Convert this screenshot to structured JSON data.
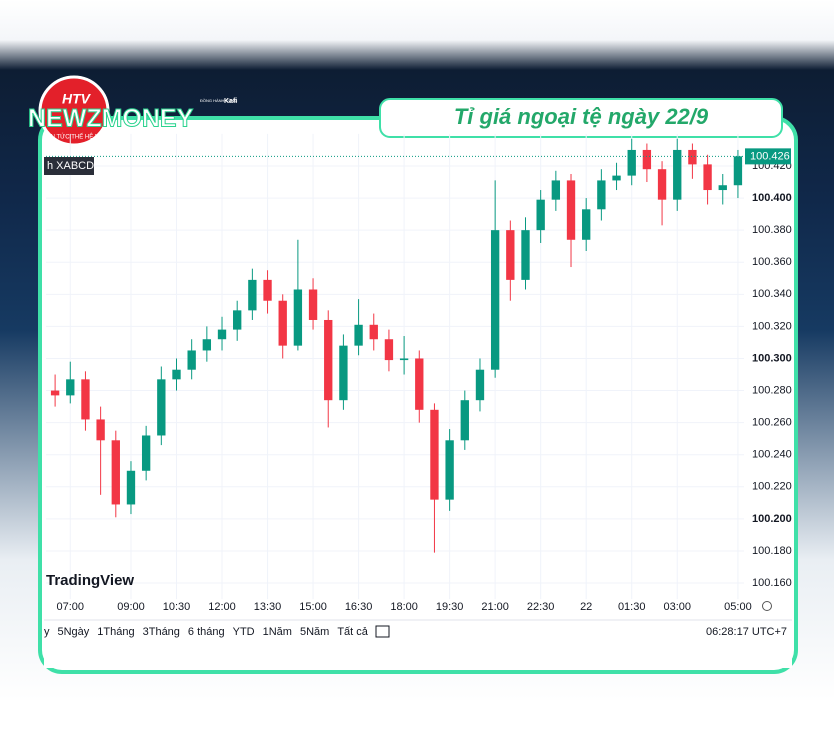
{
  "logo": {
    "brand": "NEWZMONEY",
    "badge": "HTV",
    "tagline": "TIN TỨC THẾ HỆ MỚI",
    "partner": "ĐỒNG HÀNH CÙNG",
    "partner_name": "Kafi"
  },
  "banner": "Tỉ giá ngoại tệ ngày 22/9",
  "toolbar": {
    "ranges": [
      "y",
      "5Ngày",
      "1Tháng",
      "3Tháng",
      "6 tháng",
      "YTD",
      "1Năm",
      "5Năm",
      "Tất cả"
    ],
    "clock": "06:28:17 UTC+7"
  },
  "chart_data": {
    "type": "candlestick",
    "symbol": "h XABCD",
    "watermark": "TradingView",
    "up_color": "#089981",
    "down_color": "#f23645",
    "x": [
      6.5,
      7,
      7.5,
      8,
      8.5,
      9,
      9.5,
      10,
      10.5,
      11,
      11.5,
      12,
      12.5,
      13,
      13.5,
      14,
      14.5,
      15,
      15.5,
      16,
      16.5,
      17,
      17.5,
      18,
      18.5,
      19,
      19.5,
      20,
      20.5,
      21,
      21.5,
      22,
      22.5,
      23,
      23.5,
      24,
      24.5,
      25,
      25.5,
      26,
      26.5,
      27,
      27.5,
      28,
      28.5,
      29
    ],
    "open": [
      100.28,
      100.277,
      100.287,
      100.262,
      100.249,
      100.209,
      100.23,
      100.252,
      100.287,
      100.293,
      100.305,
      100.312,
      100.318,
      100.33,
      100.349,
      100.336,
      100.308,
      100.343,
      100.324,
      100.274,
      100.308,
      100.321,
      100.312,
      100.299,
      100.3,
      100.268,
      100.212,
      100.249,
      100.274,
      100.293,
      100.38,
      100.349,
      100.38,
      100.399,
      100.411,
      100.374,
      100.393,
      100.411,
      100.414,
      100.43,
      100.418,
      100.399,
      100.43,
      100.421,
      100.405,
      100.408
    ],
    "high": [
      100.29,
      100.298,
      100.292,
      100.27,
      100.255,
      100.236,
      100.258,
      100.295,
      100.3,
      100.312,
      100.32,
      100.326,
      100.336,
      100.356,
      100.355,
      100.34,
      100.374,
      100.35,
      100.33,
      100.315,
      100.337,
      100.328,
      100.318,
      100.314,
      100.305,
      100.272,
      100.256,
      100.28,
      100.3,
      100.411,
      100.386,
      100.388,
      100.405,
      100.417,
      100.415,
      100.4,
      100.418,
      100.422,
      100.437,
      100.434,
      100.423,
      100.437,
      100.434,
      100.427,
      100.415,
      100.43
    ],
    "low": [
      100.27,
      100.272,
      100.255,
      100.215,
      100.201,
      100.203,
      100.224,
      100.246,
      100.28,
      100.287,
      100.298,
      100.305,
      100.311,
      100.324,
      100.328,
      100.3,
      100.305,
      100.318,
      100.257,
      100.268,
      100.302,
      100.305,
      100.292,
      100.29,
      100.26,
      100.179,
      100.205,
      100.243,
      100.267,
      100.288,
      100.336,
      100.343,
      100.372,
      100.392,
      100.357,
      100.367,
      100.386,
      100.405,
      100.408,
      100.41,
      100.383,
      100.392,
      100.412,
      100.396,
      100.396,
      100.4
    ],
    "close": [
      100.277,
      100.287,
      100.262,
      100.249,
      100.209,
      100.23,
      100.252,
      100.287,
      100.293,
      100.305,
      100.312,
      100.318,
      100.33,
      100.349,
      100.336,
      100.308,
      100.343,
      100.324,
      100.274,
      100.308,
      100.321,
      100.312,
      100.299,
      100.3,
      100.268,
      100.212,
      100.249,
      100.274,
      100.293,
      100.38,
      100.349,
      100.38,
      100.399,
      100.411,
      100.374,
      100.393,
      100.411,
      100.414,
      100.43,
      100.418,
      100.399,
      100.43,
      100.421,
      100.405,
      100.408,
      100.426
    ],
    "last_value": 100.426,
    "xlim": [
      6.2,
      29.2
    ],
    "xticks": [
      {
        "value": 7,
        "label": "07:00"
      },
      {
        "value": 9,
        "label": "09:00"
      },
      {
        "value": 10.5,
        "label": "10:30"
      },
      {
        "value": 12,
        "label": "12:00"
      },
      {
        "value": 13.5,
        "label": "13:30"
      },
      {
        "value": 15,
        "label": "15:00"
      },
      {
        "value": 16.5,
        "label": "16:30"
      },
      {
        "value": 18,
        "label": "18:00"
      },
      {
        "value": 19.5,
        "label": "19:30"
      },
      {
        "value": 21,
        "label": "21:00"
      },
      {
        "value": 22.5,
        "label": "22:30"
      },
      {
        "value": 24,
        "label": "22"
      },
      {
        "value": 25.5,
        "label": "01:30"
      },
      {
        "value": 27,
        "label": "03:00"
      },
      {
        "value": 29,
        "label": "05:00"
      }
    ],
    "ylim": [
      100.15,
      100.44
    ],
    "yticks": [
      {
        "value": 100.16,
        "label": "100.160"
      },
      {
        "value": 100.18,
        "label": "100.180"
      },
      {
        "value": 100.2,
        "label": "100.200"
      },
      {
        "value": 100.22,
        "label": "100.220"
      },
      {
        "value": 100.24,
        "label": "100.240"
      },
      {
        "value": 100.26,
        "label": "100.260"
      },
      {
        "value": 100.28,
        "label": "100.280"
      },
      {
        "value": 100.3,
        "label": "100.300"
      },
      {
        "value": 100.32,
        "label": "100.320"
      },
      {
        "value": 100.34,
        "label": "100.340"
      },
      {
        "value": 100.36,
        "label": "100.360"
      },
      {
        "value": 100.38,
        "label": "100.380"
      },
      {
        "value": 100.4,
        "label": "100.400"
      },
      {
        "value": 100.42,
        "label": "100.420"
      }
    ],
    "bold_yticks": [
      100.2,
      100.3,
      100.4
    ],
    "grid": true
  }
}
